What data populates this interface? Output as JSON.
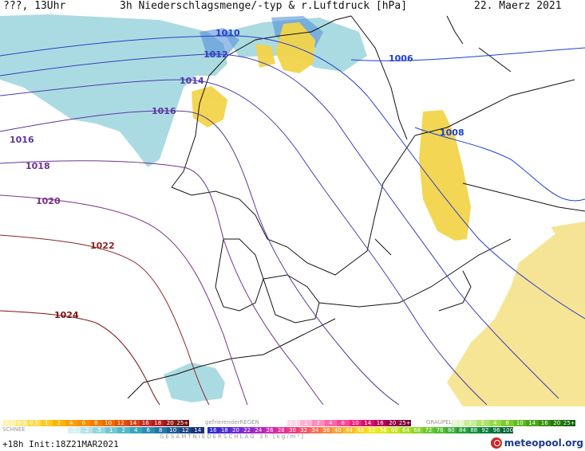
{
  "header": {
    "station": "???, 13Uhr",
    "title": "3h Niederschlagsmenge/-typ & r.Luftdruck [hPa]",
    "date": "22. Maerz 2021"
  },
  "isobars": [
    {
      "label": "1006",
      "color": "#1c3fd6"
    },
    {
      "label": "1008",
      "color": "#1c3fd6"
    },
    {
      "label": "1010",
      "color": "#2a3fc8"
    },
    {
      "label": "1012",
      "color": "#3a3dbb"
    },
    {
      "label": "1014",
      "color": "#4b3aae"
    },
    {
      "label": "1016",
      "color": "#5b36a0"
    },
    {
      "label": "1016",
      "color": "#5b36a0"
    },
    {
      "label": "1018",
      "color": "#6a3394"
    },
    {
      "label": "1020",
      "color": "#7a2f86"
    },
    {
      "label": "1022",
      "color": "#8e2424"
    },
    {
      "label": "1024",
      "color": "#7a1515"
    }
  ],
  "legend": {
    "rain_values": [
      "0.1",
      "0.3",
      "0.5",
      "1",
      "2",
      "4",
      "6",
      "8",
      "10",
      "12",
      "14",
      "16",
      "18",
      "20",
      "25+"
    ],
    "rain_label": "",
    "freezing_label": "gefrierenderREGEN",
    "freezing_values": [
      "0.1",
      "1",
      "2",
      "4",
      "8",
      "10",
      "14",
      "16",
      "20",
      "25+"
    ],
    "graupel_label": "GRAUPEL",
    "graupel_values": [
      "0.1",
      "1",
      "2",
      "4",
      "8",
      "10",
      "14",
      "16",
      "20",
      "25+"
    ],
    "snow_label": "SCHNEE",
    "snow_values": [
      ".1",
      ".2",
      ".5",
      "1",
      "2",
      "4",
      "6",
      "8",
      "10",
      "12",
      "14"
    ],
    "total_label": "GESAMTNIEDERSCHLAG 3h [kg/m²]",
    "total_values": [
      "16",
      "18",
      "20",
      "22",
      "24",
      "26",
      "28",
      "30",
      "32",
      "34",
      "36",
      "40",
      "44",
      "48",
      "52",
      "56",
      "60",
      "64",
      "68",
      "72",
      "76",
      "80",
      "84",
      "88",
      "92",
      "96",
      "100"
    ]
  },
  "footer": {
    "init": "+18h Init:18Z21MAR2021",
    "brand": "meteopool.org"
  },
  "colors": {
    "rain": "#f5d000",
    "snow": "#88ccdc",
    "graupel": "#8ccc3c",
    "freezing": "#ff4488"
  }
}
